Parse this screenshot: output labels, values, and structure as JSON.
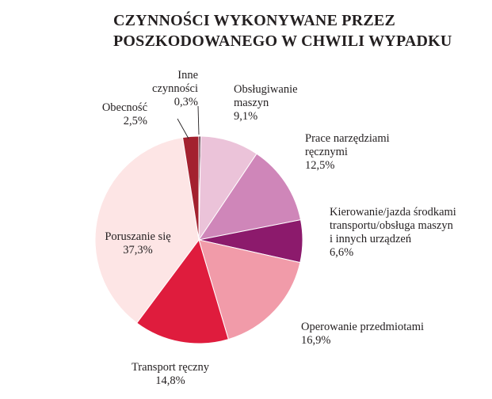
{
  "chart_data": {
    "type": "pie",
    "title": [
      "CZYNNOŚCI WYKONYWANE PRZEZ",
      "POSZKODOWANEGO W CHWILI WYPADKU"
    ],
    "start": "top",
    "direction": "clockwise",
    "slices": [
      {
        "label": [
          "Inne",
          "czynności"
        ],
        "value_label": "0,3%",
        "value": 0.3,
        "color": "#3b1226"
      },
      {
        "label": [
          "Obsługiwanie",
          "maszyn"
        ],
        "value_label": "9,1%",
        "value": 9.1,
        "color": "#ebc3d9"
      },
      {
        "label": [
          "Prace narzędziami",
          "ręcznymi"
        ],
        "value_label": "12,5%",
        "value": 12.5,
        "color": "#cf86b9"
      },
      {
        "label": [
          "Kierowanie/jazda środkami",
          "transportu/obsługa maszyn",
          "i innych urządzeń"
        ],
        "value_label": "6,6%",
        "value": 6.6,
        "color": "#8c1a6c"
      },
      {
        "label": [
          "Operowanie przedmiotami"
        ],
        "value_label": "16,9%",
        "value": 16.9,
        "color": "#f19ba9"
      },
      {
        "label": [
          "Transport ręczny"
        ],
        "value_label": "14,8%",
        "value": 14.8,
        "color": "#df1c3d"
      },
      {
        "label": [
          "Poruszanie się"
        ],
        "value_label": "37,3%",
        "value": 37.3,
        "color": "#fde5e5"
      },
      {
        "label": [
          "Obecność"
        ],
        "value_label": "2,5%",
        "value": 2.5,
        "color": "#a3212f"
      }
    ]
  }
}
